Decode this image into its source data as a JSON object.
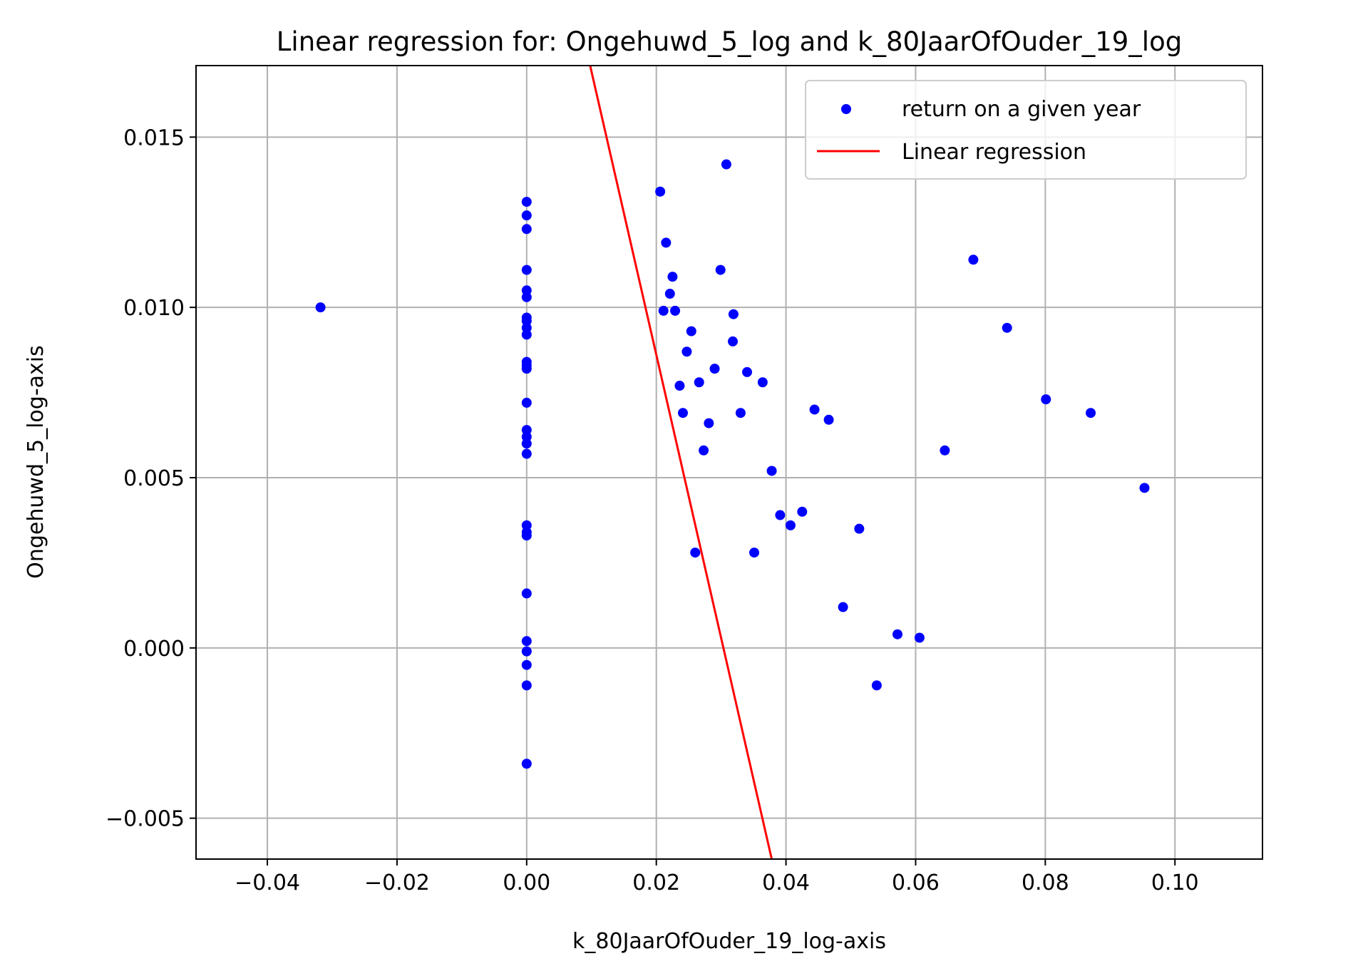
{
  "chart_data": {
    "type": "scatter",
    "title": "Linear regression for: Ongehuwd_5_log and k_80JaarOfOuder_19_log",
    "xlabel": "k_80JaarOfOuder_19_log-axis",
    "ylabel": "Ongehuwd_5_log-axis",
    "xlim": [
      -0.051,
      0.1135
    ],
    "ylim": [
      -0.0062,
      0.0171
    ],
    "xticks": [
      -0.04,
      -0.02,
      0.0,
      0.02,
      0.04,
      0.06,
      0.08,
      0.1
    ],
    "xtick_labels": [
      "−0.04",
      "−0.02",
      "0.00",
      "0.02",
      "0.04",
      "0.06",
      "0.08",
      "0.10"
    ],
    "yticks": [
      -0.005,
      0.0,
      0.005,
      0.01,
      0.015
    ],
    "ytick_labels": [
      "−0.005",
      "0.000",
      "0.005",
      "0.010",
      "0.015"
    ],
    "grid": true,
    "legend_position": "top-right",
    "series": [
      {
        "name": "return on a given year",
        "kind": "scatter",
        "color": "#0000ff",
        "points": [
          [
            -0.0318,
            0.01
          ],
          [
            0.0,
            0.0131
          ],
          [
            0.0,
            0.0127
          ],
          [
            0.0,
            0.0123
          ],
          [
            0.0,
            0.0111
          ],
          [
            0.0,
            0.0105
          ],
          [
            0.0,
            0.0103
          ],
          [
            0.0,
            0.0097
          ],
          [
            0.0,
            0.0096
          ],
          [
            0.0,
            0.0094
          ],
          [
            0.0,
            0.0092
          ],
          [
            0.0,
            0.0084
          ],
          [
            0.0,
            0.0083
          ],
          [
            0.0,
            0.0082
          ],
          [
            0.0,
            0.0072
          ],
          [
            0.0,
            0.0064
          ],
          [
            0.0,
            0.0062
          ],
          [
            0.0,
            0.006
          ],
          [
            0.0,
            0.0057
          ],
          [
            0.0,
            0.0036
          ],
          [
            0.0,
            0.0034
          ],
          [
            0.0,
            0.0033
          ],
          [
            0.0,
            0.0016
          ],
          [
            0.0,
            0.0002
          ],
          [
            0.0,
            -0.0001
          ],
          [
            0.0,
            -0.0005
          ],
          [
            0.0,
            -0.0011
          ],
          [
            0.0,
            -0.0034
          ],
          [
            0.0206,
            0.0134
          ],
          [
            0.0308,
            0.0142
          ],
          [
            0.0215,
            0.0119
          ],
          [
            0.0299,
            0.0111
          ],
          [
            0.0225,
            0.0109
          ],
          [
            0.0221,
            0.0104
          ],
          [
            0.0211,
            0.0099
          ],
          [
            0.0229,
            0.0099
          ],
          [
            0.0319,
            0.0098
          ],
          [
            0.0254,
            0.0093
          ],
          [
            0.0318,
            0.009
          ],
          [
            0.0247,
            0.0087
          ],
          [
            0.029,
            0.0082
          ],
          [
            0.034,
            0.0081
          ],
          [
            0.0266,
            0.0078
          ],
          [
            0.0364,
            0.0078
          ],
          [
            0.0236,
            0.0077
          ],
          [
            0.0241,
            0.0069
          ],
          [
            0.033,
            0.0069
          ],
          [
            0.0444,
            0.007
          ],
          [
            0.0466,
            0.0067
          ],
          [
            0.0281,
            0.0066
          ],
          [
            0.0273,
            0.0058
          ],
          [
            0.0645,
            0.0058
          ],
          [
            0.0378,
            0.0052
          ],
          [
            0.0425,
            0.004
          ],
          [
            0.0391,
            0.0039
          ],
          [
            0.0407,
            0.0036
          ],
          [
            0.0513,
            0.0035
          ],
          [
            0.0351,
            0.0028
          ],
          [
            0.026,
            0.0028
          ],
          [
            0.0488,
            0.0012
          ],
          [
            0.0572,
            0.0004
          ],
          [
            0.0606,
            0.0003
          ],
          [
            0.054,
            -0.0011
          ],
          [
            0.0689,
            0.0114
          ],
          [
            0.0741,
            0.0094
          ],
          [
            0.0801,
            0.0073
          ],
          [
            0.087,
            0.0069
          ],
          [
            0.0953,
            0.0047
          ]
        ]
      },
      {
        "name": "Linear regression",
        "kind": "line",
        "color": "#ff0000",
        "x": [
          0.00979,
          0.0378
        ],
        "y": [
          0.0171,
          -0.0062
        ]
      }
    ]
  }
}
